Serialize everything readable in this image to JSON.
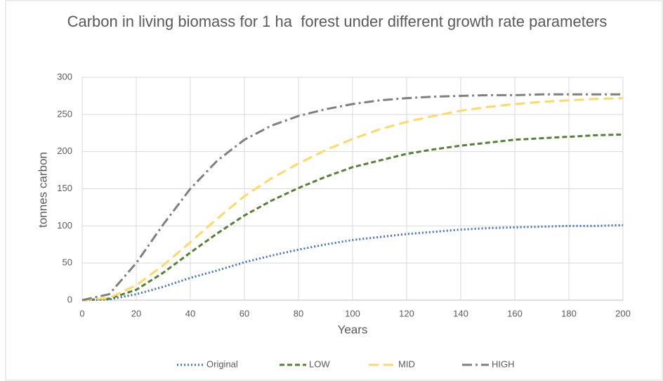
{
  "chart_data": {
    "type": "line",
    "title": "Carbon in living biomass for 1 ha  forest under different growth rate parameters",
    "x_label": "Years",
    "y_label": "tonnes carbon",
    "x": [
      0,
      10,
      20,
      30,
      40,
      50,
      60,
      70,
      80,
      90,
      100,
      110,
      120,
      130,
      140,
      150,
      160,
      170,
      180,
      190,
      200
    ],
    "series": [
      {
        "name": "Original",
        "color": "#4472c4",
        "dash": "dotted",
        "values": [
          0,
          1,
          8,
          18,
          30,
          40,
          51,
          60,
          68,
          75,
          81,
          85,
          89,
          92,
          95,
          97,
          98,
          99,
          100,
          100,
          101
        ]
      },
      {
        "name": "LOW",
        "color": "#548235",
        "dash": "dashed",
        "values": [
          0,
          2,
          14,
          37,
          64,
          90,
          114,
          134,
          151,
          166,
          179,
          188,
          197,
          203,
          208,
          212,
          216,
          218,
          220,
          222,
          223
        ]
      },
      {
        "name": "MID",
        "color": "#ffd966",
        "dash": "long-dash",
        "values": [
          0,
          3,
          20,
          47,
          78,
          110,
          140,
          164,
          184,
          202,
          217,
          230,
          240,
          248,
          255,
          260,
          264,
          267,
          269,
          271,
          272
        ]
      },
      {
        "name": "HIGH",
        "color": "#7f7f7f",
        "dash": "dash-dot",
        "values": [
          0,
          8,
          50,
          102,
          150,
          188,
          216,
          235,
          248,
          257,
          264,
          269,
          272,
          274,
          275,
          276,
          276,
          277,
          277,
          277,
          277
        ]
      }
    ],
    "xlim": [
      0,
      200
    ],
    "xticks": [
      0,
      20,
      40,
      60,
      80,
      100,
      120,
      140,
      160,
      180,
      200
    ],
    "ylim": [
      0,
      300
    ],
    "yticks": [
      0,
      50,
      100,
      150,
      200,
      250,
      300
    ],
    "grid": true,
    "legend": "bottom"
  }
}
